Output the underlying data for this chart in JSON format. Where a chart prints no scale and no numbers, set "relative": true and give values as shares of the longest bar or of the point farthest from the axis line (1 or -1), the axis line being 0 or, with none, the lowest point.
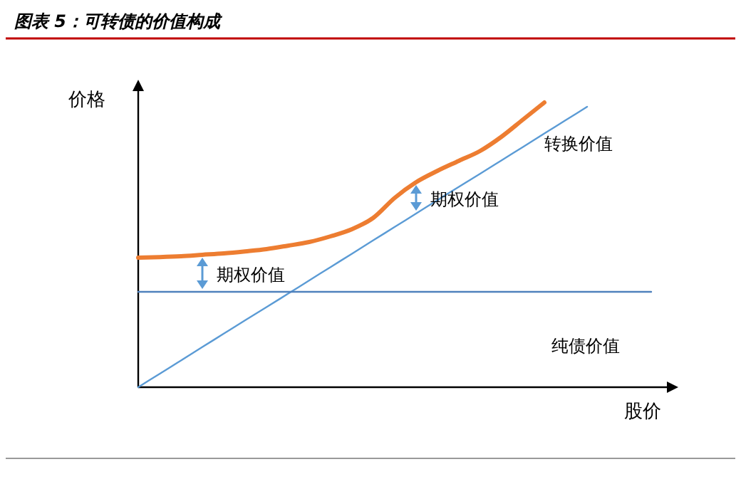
{
  "chart_data": {
    "type": "line",
    "title": "图表 5：可转债的价值构成",
    "xlabel": "股价",
    "ylabel": "价格",
    "relative": true,
    "categories": [
      null,
      null,
      null,
      null,
      null,
      null,
      null,
      null,
      null,
      null,
      null,
      null,
      null,
      null,
      null,
      null,
      null,
      null,
      null,
      null,
      null,
      null,
      null,
      null,
      null
    ],
    "series": [
      {
        "color": "#ed7d31",
        "values": [
          0.455,
          0.457,
          0.46,
          0.465,
          0.47,
          0.477,
          0.485,
          0.497,
          0.51,
          0.53,
          0.555,
          0.595,
          0.665,
          0.72,
          0.76,
          0.795,
          0.83,
          0.88,
          0.94,
          1,
          null,
          null,
          null,
          null,
          null
        ]
      },
      {
        "name": "转换价值",
        "color": "#5b9bd5",
        "values": [
          0,
          0.047,
          0.094,
          0.141,
          0.188,
          0.235,
          0.281,
          0.328,
          0.375,
          0.422,
          0.469,
          0.516,
          0.563,
          0.61,
          0.657,
          0.704,
          0.75,
          0.797,
          0.844,
          0.891,
          0.938,
          0.985,
          null,
          null,
          null
        ]
      },
      {
        "name": "纯债价值",
        "color": "#4f81bd",
        "values": [
          0.335,
          0.335,
          0.335,
          0.335,
          0.335,
          0.335,
          0.335,
          0.335,
          0.335,
          0.335,
          0.335,
          0.335,
          0.335,
          0.335,
          0.335,
          0.335,
          0.335,
          0.335,
          0.335,
          0.335,
          0.335,
          0.335,
          0.335,
          0.335,
          0.335
        ]
      }
    ],
    "annotations": [
      "期权价值",
      "期权价值"
    ]
  }
}
